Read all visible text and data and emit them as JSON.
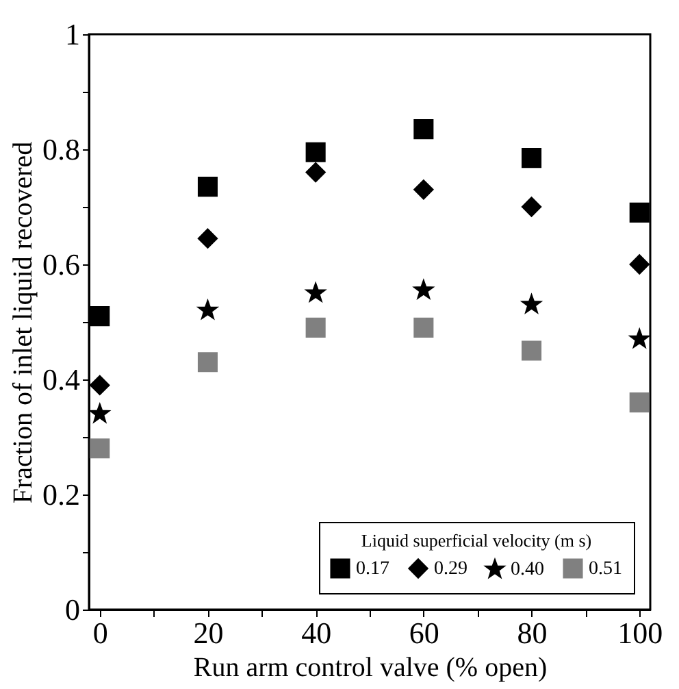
{
  "chart_data": {
    "type": "scatter",
    "xlabel": "Run arm control valve (% open)",
    "ylabel": "Fraction of inlet liquid recovered",
    "legend_title": "Liquid superficial velocity (m s)",
    "legend": "bottom",
    "x": [
      0,
      20,
      40,
      60,
      80,
      100
    ],
    "series": [
      {
        "name": "0.17",
        "color": "#000000",
        "marker": "square",
        "values": [
          0.51,
          0.735,
          0.795,
          0.835,
          0.785,
          0.69
        ]
      },
      {
        "name": "0.29",
        "color": "#000000",
        "marker": "diamond",
        "values": [
          0.39,
          0.645,
          0.76,
          0.73,
          0.7,
          0.6
        ]
      },
      {
        "name": "0.40",
        "color": "#000000",
        "marker": "star",
        "values": [
          0.34,
          0.52,
          0.55,
          0.555,
          0.53,
          0.47
        ]
      },
      {
        "name": "0.51",
        "color": "#808080",
        "marker": "square",
        "values": [
          0.28,
          0.43,
          0.49,
          0.49,
          0.45,
          0.36
        ]
      }
    ],
    "xlim": [
      -2,
      102
    ],
    "xticks": [
      0,
      {
        "value": 10,
        "label": null
      },
      20,
      {
        "value": 30,
        "label": null
      },
      40,
      {
        "value": 50,
        "label": null
      },
      60,
      {
        "value": 70,
        "label": null
      },
      80,
      {
        "value": 90,
        "label": null
      },
      100
    ],
    "ylim": [
      0,
      1
    ],
    "yticks": [
      0,
      {
        "value": 0.1,
        "label": null
      },
      0.2,
      {
        "value": 0.3,
        "label": null
      },
      0.4,
      {
        "value": 0.5,
        "label": null
      },
      0.6,
      {
        "value": 0.7,
        "label": null
      },
      0.8,
      {
        "value": 0.9,
        "label": null
      },
      1
    ],
    "grid": false
  }
}
